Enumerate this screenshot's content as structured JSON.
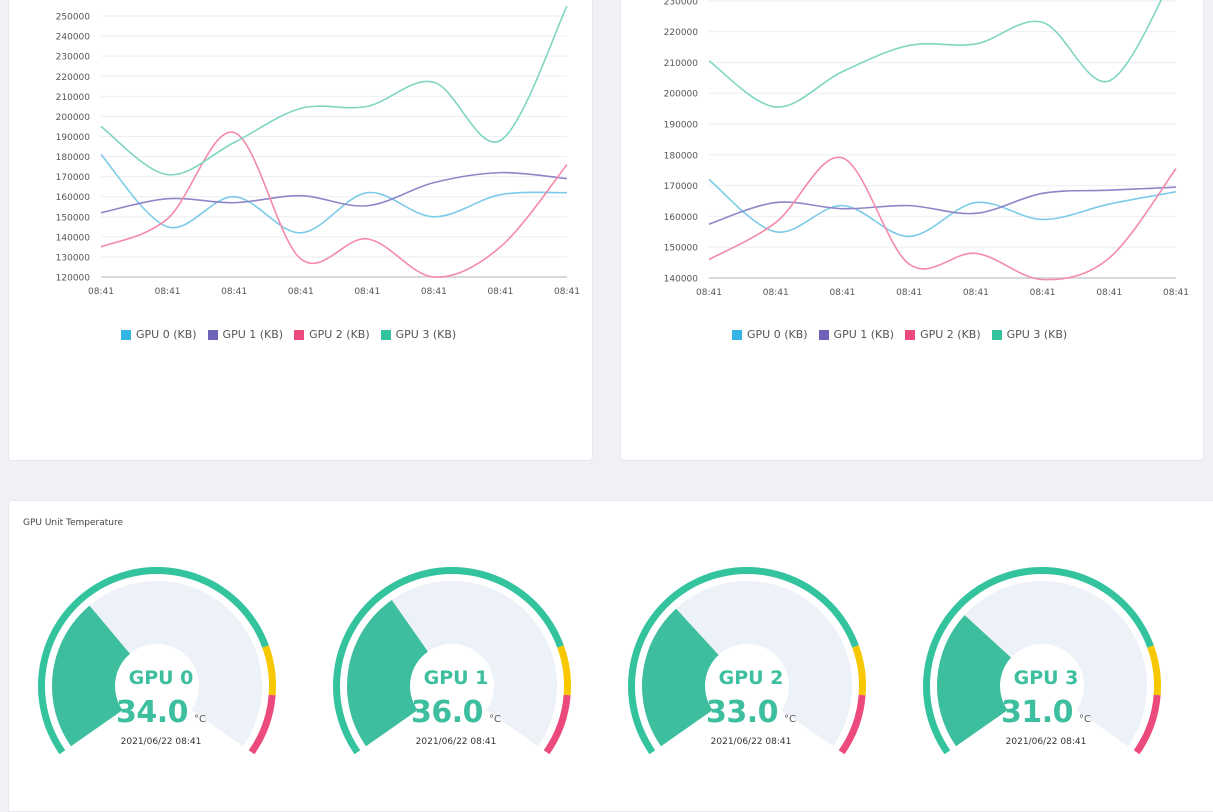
{
  "chart_data": [
    {
      "type": "line",
      "categories": [
        "08:41",
        "08:41",
        "08:41",
        "08:41",
        "08:41",
        "08:41",
        "08:41",
        "08:41"
      ],
      "ylim": [
        120000,
        255000
      ],
      "yticks": [
        120000,
        130000,
        140000,
        150000,
        160000,
        170000,
        180000,
        190000,
        200000,
        210000,
        220000,
        230000,
        240000,
        250000
      ],
      "grid": true,
      "legend": "bottom",
      "series": [
        {
          "name": "GPU 0 (KB)",
          "color": "#7ccbe8",
          "values": [
            181000,
            145000,
            160000,
            142000,
            162000,
            150000,
            161000,
            162000
          ]
        },
        {
          "name": "GPU 1 (KB)",
          "color": "#8e86c7",
          "values": [
            152000,
            159000,
            157000,
            160500,
            155500,
            167000,
            172000,
            169000
          ]
        },
        {
          "name": "GPU 2 (KB)",
          "color": "#f48aaa",
          "values": [
            135000,
            149000,
            192000,
            129000,
            139000,
            120000,
            135000,
            176000
          ]
        },
        {
          "name": "GPU 3 (KB)",
          "color": "#7fd6c2",
          "values": [
            195000,
            171000,
            187000,
            204000,
            205000,
            217000,
            188000,
            255000
          ]
        }
      ]
    },
    {
      "type": "line",
      "categories": [
        "08:41",
        "08:41",
        "08:41",
        "08:41",
        "08:41",
        "08:41",
        "08:41",
        "08:41"
      ],
      "ylim": [
        140000,
        240000
      ],
      "yticks": [
        140000,
        150000,
        160000,
        170000,
        180000,
        190000,
        200000,
        210000,
        220000,
        230000
      ],
      "grid": true,
      "legend": "bottom",
      "series": [
        {
          "name": "GPU 0 (KB)",
          "color": "#7ccbe8",
          "values": [
            172000,
            155000,
            163500,
            153500,
            164500,
            159000,
            164000,
            168000
          ]
        },
        {
          "name": "GPU 1 (KB)",
          "color": "#8e86c7",
          "values": [
            157500,
            164500,
            162500,
            163500,
            161000,
            167500,
            168500,
            169500
          ]
        },
        {
          "name": "GPU 2 (KB)",
          "color": "#f48aaa",
          "values": [
            146000,
            158000,
            179000,
            144500,
            148000,
            139500,
            146500,
            175500
          ]
        },
        {
          "name": "GPU 3 (KB)",
          "color": "#7fd6c2",
          "values": [
            210500,
            195500,
            207000,
            215500,
            216000,
            223000,
            204000,
            240000
          ]
        }
      ]
    }
  ],
  "legend": [
    {
      "label": "GPU 0 (KB)",
      "color": "#33b5e5"
    },
    {
      "label": "GPU 1 (KB)",
      "color": "#6c63b8"
    },
    {
      "label": "GPU 2 (KB)",
      "color": "#ec4a7c"
    },
    {
      "label": "GPU 3 (KB)",
      "color": "#34c39f"
    }
  ],
  "temperature": {
    "title": "GPU Unit Temperature",
    "unit": "°C",
    "fill_color": "#3dbf9f",
    "track_color": "#edf1f8",
    "band_colors": {
      "ok": "#34c39f",
      "warn": "#f7c800",
      "danger": "#ec4a7c"
    },
    "gauges": [
      {
        "name": "GPU 0",
        "value": "34.0",
        "fraction": 0.34,
        "time": "2021/06/22 08:41"
      },
      {
        "name": "GPU 1",
        "value": "36.0",
        "fraction": 0.36,
        "time": "2021/06/22 08:41"
      },
      {
        "name": "GPU 2",
        "value": "33.0",
        "fraction": 0.33,
        "time": "2021/06/22 08:41"
      },
      {
        "name": "GPU 3",
        "value": "31.0",
        "fraction": 0.31,
        "time": "2021/06/22 08:41"
      }
    ]
  }
}
